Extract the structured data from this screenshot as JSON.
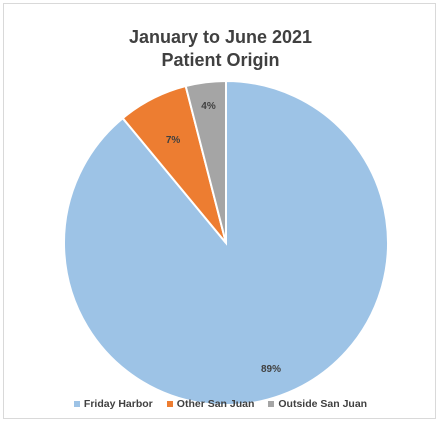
{
  "chart_data": {
    "type": "pie",
    "title_lines": [
      "January to June 2021",
      "Patient Origin"
    ],
    "slices": [
      {
        "name": "Friday Harbor",
        "value": 89,
        "label": "89%",
        "color": "#9dc3e6"
      },
      {
        "name": "Other San Juan",
        "value": 7,
        "label": "7%",
        "color": "#ed7d31"
      },
      {
        "name": "Outside San Juan",
        "value": 4,
        "label": "4%",
        "color": "#a5a5a5"
      }
    ],
    "legend_position": "bottom"
  }
}
